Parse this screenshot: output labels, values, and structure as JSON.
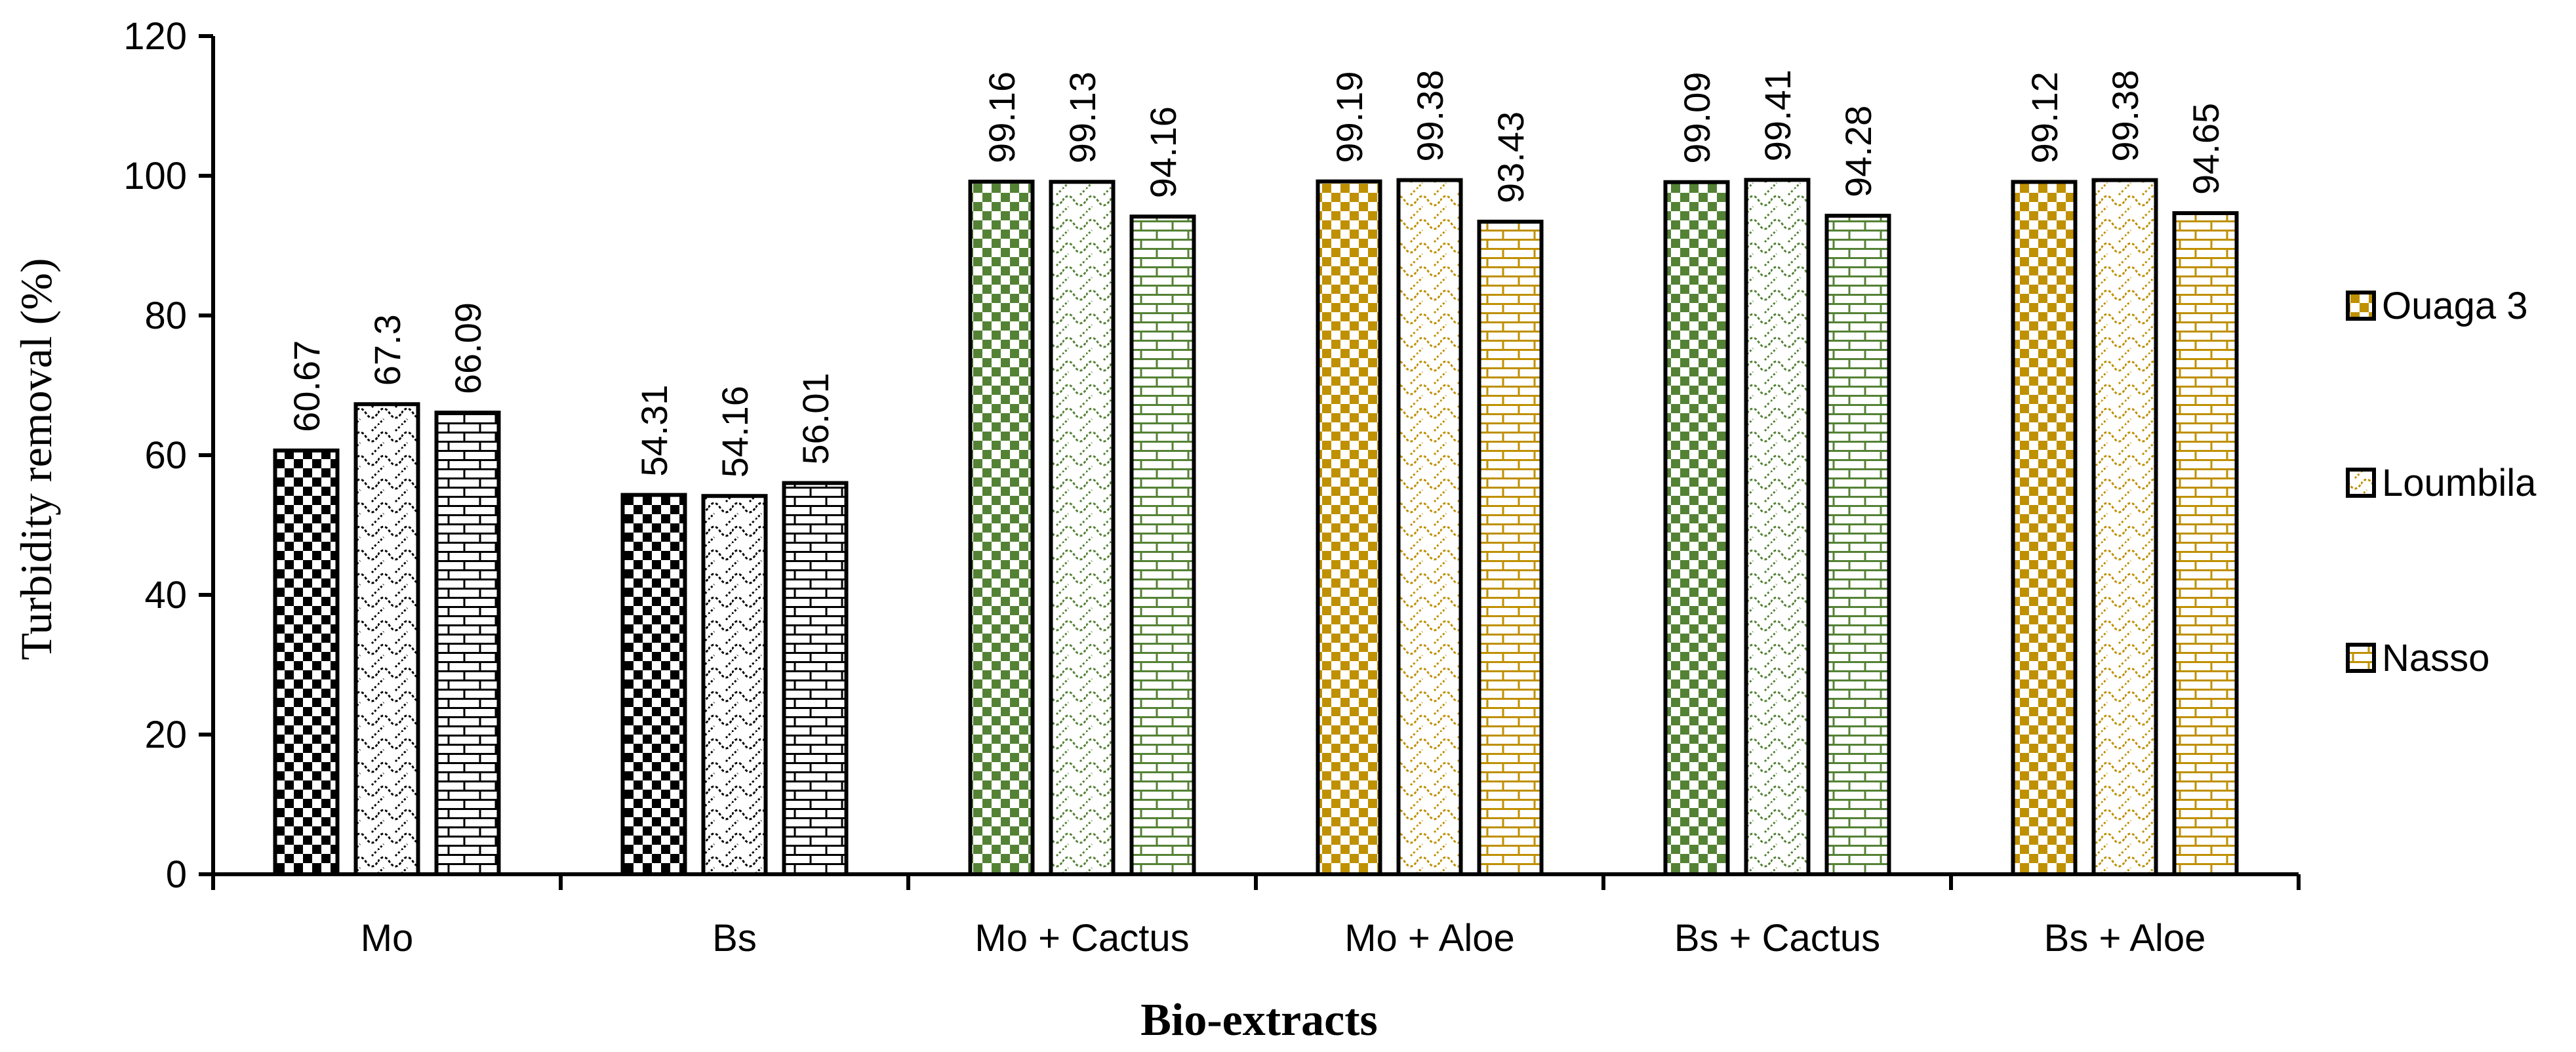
{
  "chart_data": {
    "type": "bar",
    "title": "",
    "xlabel": "Bio-extracts",
    "ylabel": "Turbidity removal (%)",
    "ylim": [
      0,
      120
    ],
    "yticks": [
      0,
      20,
      40,
      60,
      80,
      100,
      120
    ],
    "categories": [
      "Mo",
      "Bs",
      "Mo + Cactus",
      "Mo + Aloe",
      "Bs + Cactus",
      "Bs + Aloe"
    ],
    "category_colors": [
      "#000000",
      "#000000",
      "#548235",
      "#BF9000",
      "#548235",
      "#BF9000"
    ],
    "series": [
      {
        "name": "Ouaga 3",
        "pattern": "checker",
        "values": [
          60.67,
          54.31,
          99.16,
          99.19,
          99.09,
          99.12
        ],
        "labels": [
          "60.67",
          "54.31",
          "99.16",
          "99.19",
          "99.09",
          "99.12"
        ]
      },
      {
        "name": "Loumbila",
        "pattern": "wave",
        "values": [
          67.3,
          54.16,
          99.13,
          99.38,
          99.41,
          99.38
        ],
        "labels": [
          "67.3",
          "54.16",
          "99.13",
          "99.38",
          "99.41",
          "99.38"
        ]
      },
      {
        "name": "Nasso",
        "pattern": "brick",
        "values": [
          66.09,
          56.01,
          94.16,
          93.43,
          94.28,
          94.65
        ],
        "labels": [
          "66.09",
          "56.01",
          "94.16",
          "93.43",
          "94.28",
          "94.65"
        ]
      }
    ],
    "legend_position": "right",
    "legend_icon_color": "#BF9000",
    "grid": false
  }
}
